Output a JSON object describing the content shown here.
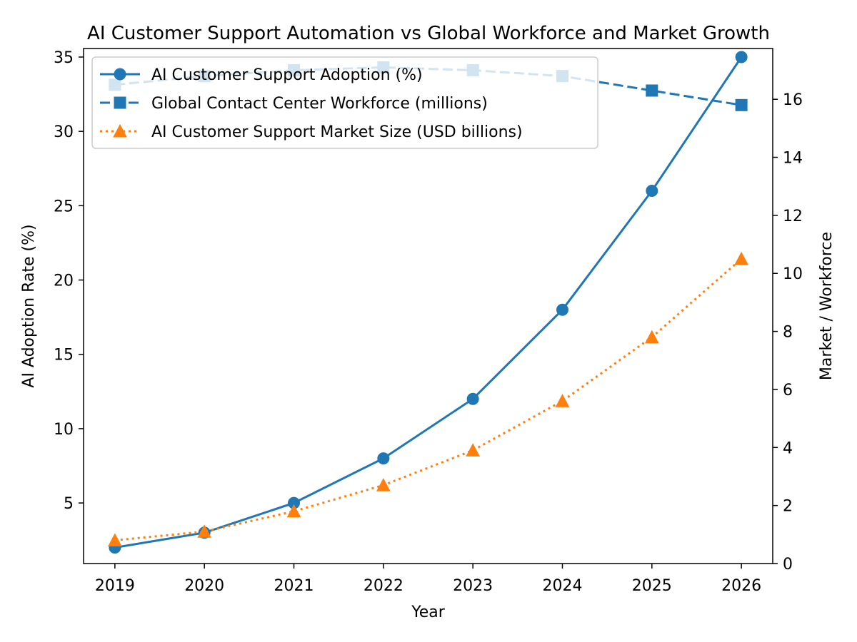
{
  "chart_data": {
    "type": "line",
    "title": "AI Customer Support Automation vs Global Workforce and Market Growth",
    "xlabel": "Year",
    "ylabel": "AI Adoption Rate (%)",
    "ylabel_right": "Market / Workforce",
    "x": [
      2019,
      2020,
      2021,
      2022,
      2023,
      2024,
      2025,
      2026
    ],
    "ylim": [
      0.925,
      35.575
    ],
    "yticks": [
      5,
      10,
      15,
      20,
      25,
      30,
      35
    ],
    "ylim_right": [
      0,
      17.75
    ],
    "yticks_right": [
      0,
      2,
      4,
      6,
      8,
      10,
      12,
      14,
      16
    ],
    "legend_position": "upper-left",
    "grid": false,
    "series": [
      {
        "name": "AI Customer Support Adoption (%)",
        "axis": "left",
        "color": "#1f77b4",
        "linestyle": "solid",
        "marker": "circle",
        "values": [
          2,
          3,
          5,
          8,
          12,
          18,
          26,
          35
        ]
      },
      {
        "name": "Global Contact Center Workforce (millions)",
        "axis": "right",
        "color": "#1f77b4",
        "linestyle": "dashed",
        "marker": "square",
        "values": [
          16.5,
          16.8,
          17.0,
          17.1,
          17.0,
          16.8,
          16.3,
          15.8
        ]
      },
      {
        "name": "AI Customer Support Market Size (USD billions)",
        "axis": "right",
        "color": "#ff7f0e",
        "linestyle": "dotted",
        "marker": "triangle",
        "values": [
          0.8,
          1.1,
          1.8,
          2.7,
          3.9,
          5.6,
          7.8,
          10.5
        ]
      }
    ]
  }
}
